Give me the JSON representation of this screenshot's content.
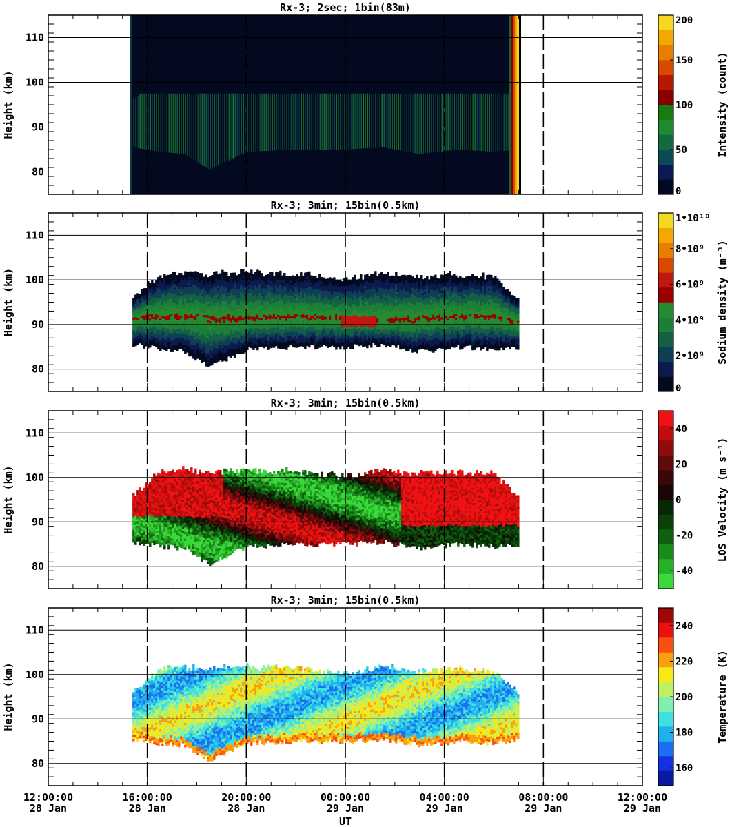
{
  "figure": {
    "xlabel": "UT",
    "x_ticks": [
      {
        "time": "12:00:00",
        "date": "28 Jan"
      },
      {
        "time": "16:00:00",
        "date": "28 Jan"
      },
      {
        "time": "20:00:00",
        "date": "28 Jan"
      },
      {
        "time": "00:00:00",
        "date": "29 Jan"
      },
      {
        "time": "04:00:00",
        "date": "29 Jan"
      },
      {
        "time": "08:00:00",
        "date": "29 Jan"
      },
      {
        "time": "12:00:00",
        "date": "29 Jan"
      }
    ]
  },
  "chart_data": [
    {
      "type": "heatmap",
      "title": "Rx-3;  2sec; 1bin(83m)",
      "ylabel": "Height (km)",
      "ylim": [
        75,
        115
      ],
      "y_ticks": [
        80,
        90,
        100,
        110
      ],
      "x_range_hours": [
        0,
        24
      ],
      "data_start_hour": 3.3,
      "data_end_hour": 19.1,
      "colorbar": {
        "label": "Intensity (count)",
        "range": [
          0,
          200
        ],
        "tick_labels": [
          "0",
          "50",
          "100",
          "150",
          "200"
        ],
        "tick_values": [
          0,
          50,
          100,
          150,
          200
        ],
        "colors": [
          "#030a20",
          "#0a1a55",
          "#0c4a55",
          "#136a40",
          "#1f8a30",
          "#1a7a10",
          "#8a0000",
          "#b81800",
          "#d84a00",
          "#e67e00",
          "#f2a800",
          "#f4d820"
        ]
      }
    },
    {
      "type": "heatmap",
      "title": "Rx-3; 3min; 15bin(0.5km)",
      "ylabel": "Height (km)",
      "ylim": [
        75,
        115
      ],
      "y_ticks": [
        80,
        90,
        100,
        110
      ],
      "x_range_hours": [
        0,
        24
      ],
      "layer": {
        "x_hours": [
          3.4,
          4.5,
          5.5,
          6.5,
          8.0,
          10.0,
          12.0,
          13.5,
          15.0,
          16.5,
          18.0,
          19.0
        ],
        "bottom_km": [
          85.5,
          84.5,
          84.0,
          80.5,
          84.5,
          85.0,
          85.0,
          85.5,
          84.0,
          85.0,
          84.5,
          85.0
        ],
        "top_km": [
          96.0,
          101.0,
          101.5,
          101.0,
          101.5,
          101.0,
          100.0,
          101.5,
          100.5,
          101.0,
          100.5,
          95.0
        ],
        "peak_km": [
          91.0,
          91.5,
          91.5,
          91.0,
          91.0,
          91.5,
          91.0,
          90.5,
          91.0,
          91.5,
          91.5,
          90.0
        ]
      },
      "colorbar": {
        "label": "Sodium density (m⁻³)",
        "range": [
          0,
          10000000000
        ],
        "tick_labels": [
          "0",
          "2•10⁹",
          "4•10⁹",
          "6•10⁹",
          "8•10⁹",
          "1•10¹⁰"
        ],
        "tick_values": [
          0,
          2000000000,
          4000000000,
          6000000000,
          8000000000,
          10000000000
        ],
        "colors": [
          "#030a20",
          "#0c1a50",
          "#0e3f55",
          "#145f45",
          "#1c7f38",
          "#258a30",
          "#9a0000",
          "#c01810",
          "#d84a00",
          "#e67e00",
          "#f2a800",
          "#f4d820"
        ]
      }
    },
    {
      "type": "heatmap",
      "title": "Rx-3; 3min; 15bin(0.5km)",
      "ylabel": "Height (km)",
      "ylim": [
        75,
        115
      ],
      "y_ticks": [
        80,
        90,
        100,
        110
      ],
      "x_range_hours": [
        0,
        24
      ],
      "colorbar": {
        "label": "LOS Velocity (m s⁻¹)",
        "range": [
          -50,
          50
        ],
        "tick_labels": [
          "-40",
          "-20",
          "0",
          "20",
          "40"
        ],
        "tick_values": [
          -40,
          -20,
          0,
          20,
          40
        ],
        "colors": [
          "#3ad83a",
          "#28b028",
          "#1a8a1a",
          "#106010",
          "#0a400a",
          "#062806",
          "#1a0606",
          "#3a0808",
          "#600a0a",
          "#900c0c",
          "#c00e0e",
          "#f01212"
        ]
      }
    },
    {
      "type": "heatmap",
      "title": "Rx-3; 3min; 15bin(0.5km)",
      "ylabel": "Height (km)",
      "ylim": [
        75,
        115
      ],
      "y_ticks": [
        80,
        90,
        100,
        110
      ],
      "x_range_hours": [
        0,
        24
      ],
      "colorbar": {
        "label": "Temperature (K)",
        "range": [
          150,
          250
        ],
        "tick_labels": [
          "160",
          "180",
          "200",
          "220",
          "240"
        ],
        "tick_values": [
          160,
          180,
          200,
          220,
          240
        ],
        "colors": [
          "#0a1aa0",
          "#1430e0",
          "#1a70f0",
          "#20b0f0",
          "#40e0e0",
          "#80f0b0",
          "#c0f060",
          "#f8e818",
          "#f8a010",
          "#f85010",
          "#e81010",
          "#a00808"
        ]
      }
    }
  ]
}
